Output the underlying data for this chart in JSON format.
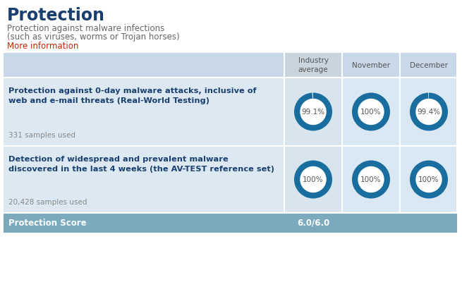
{
  "title": "Protection",
  "subtitle_line1": "Protection against malware infections",
  "subtitle_line2": "(such as viruses, worms or Trojan horses)",
  "subtitle_link": "More information",
  "col_headers": [
    "Industry\naverage",
    "November",
    "December"
  ],
  "row1_label_bold": "Protection against 0-day malware attacks, inclusive of\nweb and e-mail threats (Real-World Testing)",
  "row1_sublabel": "331 samples used",
  "row2_label_bold": "Detection of widespread and prevalent malware\ndiscovered in the last 4 weeks (the AV-TEST reference set)",
  "row2_sublabel": "20,428 samples used",
  "row1_values": [
    99.1,
    100.0,
    99.4
  ],
  "row2_values": [
    100.0,
    100.0,
    100.0
  ],
  "row1_labels": [
    "99.1%",
    "100%",
    "99.4%"
  ],
  "row2_labels": [
    "100%",
    "100%",
    "100%"
  ],
  "score_label": "Protection Score",
  "score_value": "6.0/6.0",
  "color_header_bg": "#c8d8e8",
  "color_row_bg": "#dce9f2",
  "color_cell_industry_bg": "#d8e4ee",
  "color_cell_bg": "#dae8f4",
  "color_score_bg": "#7baabf",
  "color_circle_fill": "#1a6e9f",
  "color_circle_light": "#c8d8e8",
  "color_title": "#1a3f6f",
  "color_text": "#666666",
  "color_link": "#cc2200",
  "color_white": "#ffffff",
  "color_bold_text": "#1a3f6f",
  "color_sublabel": "#888888"
}
